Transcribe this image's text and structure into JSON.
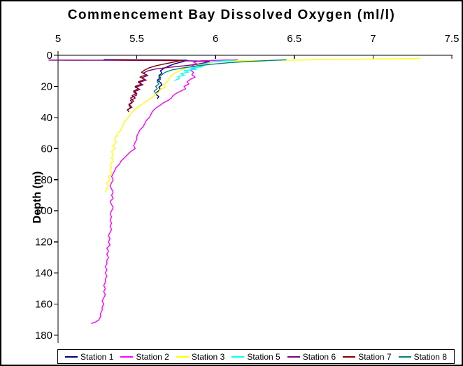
{
  "chart_data": {
    "type": "line",
    "title": "Commencement Bay Dissolved Oxygen (ml/l)",
    "xlabel": "",
    "ylabel": "Depth (m)",
    "grid": false,
    "legend_position": "bottom",
    "x_axis": {
      "position": "top",
      "min": 5,
      "max": 7.5,
      "tick_labels": [
        "5",
        "5.5",
        "6",
        "6.5",
        "7",
        "7.5"
      ],
      "tick_values": [
        5,
        5.5,
        6,
        6.5,
        7,
        7.5
      ]
    },
    "y_axis": {
      "inverted": true,
      "min": 0,
      "max": 180,
      "tick_labels": [
        "0",
        "20",
        "40",
        "60",
        "80",
        "100",
        "120",
        "140",
        "160",
        "180"
      ],
      "tick_values": [
        0,
        20,
        40,
        60,
        80,
        100,
        120,
        140,
        160,
        180
      ]
    },
    "series": [
      {
        "name": "Station 1",
        "color": "#000080",
        "points": [
          [
            5.29,
            2.8
          ],
          [
            5.5,
            2.9
          ],
          [
            5.7,
            3.0
          ],
          [
            5.82,
            3.2
          ],
          [
            5.79,
            4.2
          ],
          [
            5.74,
            5.5
          ],
          [
            5.7,
            7
          ],
          [
            5.67,
            8.5
          ],
          [
            5.65,
            10
          ],
          [
            5.66,
            11.5
          ],
          [
            5.64,
            13
          ],
          [
            5.65,
            14.5
          ],
          [
            5.63,
            16
          ],
          [
            5.65,
            17.5
          ],
          [
            5.66,
            19
          ],
          [
            5.64,
            20.5
          ],
          [
            5.65,
            22
          ],
          [
            5.63,
            23.5
          ],
          [
            5.62,
            25
          ],
          [
            5.64,
            26.5
          ],
          [
            5.63,
            28
          ]
        ]
      },
      {
        "name": "Station 2",
        "color": "#FF00FF",
        "points": [
          [
            6.14,
            2.9
          ],
          [
            6.02,
            3.2
          ],
          [
            5.9,
            3.6
          ],
          [
            5.86,
            4.4
          ],
          [
            5.88,
            5.5
          ],
          [
            5.85,
            6.8
          ],
          [
            5.87,
            8
          ],
          [
            5.84,
            9.5
          ],
          [
            5.86,
            11
          ],
          [
            5.85,
            12.5
          ],
          [
            5.87,
            14
          ],
          [
            5.84,
            15.5
          ],
          [
            5.82,
            17
          ],
          [
            5.83,
            18.5
          ],
          [
            5.8,
            20
          ],
          [
            5.81,
            21.5
          ],
          [
            5.78,
            23
          ],
          [
            5.75,
            24.5
          ],
          [
            5.73,
            26
          ],
          [
            5.72,
            27.5
          ],
          [
            5.7,
            29
          ],
          [
            5.67,
            30.5
          ],
          [
            5.65,
            32
          ],
          [
            5.62,
            34
          ],
          [
            5.6,
            36
          ],
          [
            5.59,
            38
          ],
          [
            5.58,
            40
          ],
          [
            5.56,
            42
          ],
          [
            5.55,
            44
          ],
          [
            5.54,
            46
          ],
          [
            5.52,
            48
          ],
          [
            5.51,
            50
          ],
          [
            5.5,
            52
          ],
          [
            5.5,
            54
          ],
          [
            5.49,
            56
          ],
          [
            5.48,
            58
          ],
          [
            5.49,
            60
          ],
          [
            5.46,
            62
          ],
          [
            5.44,
            64
          ],
          [
            5.42,
            66
          ],
          [
            5.4,
            68
          ],
          [
            5.39,
            70
          ],
          [
            5.37,
            72
          ],
          [
            5.36,
            74
          ],
          [
            5.35,
            76
          ],
          [
            5.34,
            78
          ],
          [
            5.35,
            80
          ],
          [
            5.34,
            82
          ],
          [
            5.33,
            84
          ],
          [
            5.34,
            86
          ],
          [
            5.35,
            88
          ],
          [
            5.34,
            90
          ],
          [
            5.35,
            92
          ],
          [
            5.33,
            94
          ],
          [
            5.34,
            96
          ],
          [
            5.35,
            98
          ],
          [
            5.34,
            100
          ],
          [
            5.33,
            102
          ],
          [
            5.34,
            104
          ],
          [
            5.33,
            106
          ],
          [
            5.34,
            108
          ],
          [
            5.33,
            110
          ],
          [
            5.34,
            112
          ],
          [
            5.33,
            114
          ],
          [
            5.32,
            116
          ],
          [
            5.33,
            118
          ],
          [
            5.32,
            120
          ],
          [
            5.33,
            122
          ],
          [
            5.31,
            124
          ],
          [
            5.32,
            126
          ],
          [
            5.31,
            128
          ],
          [
            5.32,
            130
          ],
          [
            5.31,
            132
          ],
          [
            5.31,
            134
          ],
          [
            5.3,
            136
          ],
          [
            5.31,
            138
          ],
          [
            5.3,
            140
          ],
          [
            5.31,
            142
          ],
          [
            5.3,
            144
          ],
          [
            5.3,
            146
          ],
          [
            5.29,
            148
          ],
          [
            5.3,
            150
          ],
          [
            5.29,
            152
          ],
          [
            5.3,
            154
          ],
          [
            5.29,
            156
          ],
          [
            5.28,
            158
          ],
          [
            5.29,
            160
          ],
          [
            5.28,
            162
          ],
          [
            5.28,
            164
          ],
          [
            5.27,
            166
          ],
          [
            5.27,
            168
          ],
          [
            5.26,
            170
          ],
          [
            5.24,
            171.5
          ],
          [
            5.21,
            172.5
          ]
        ]
      },
      {
        "name": "Station 3",
        "color": "#FFFF00",
        "points": [
          [
            7.3,
            2.0
          ],
          [
            7.15,
            2.2
          ],
          [
            7.0,
            2.4
          ],
          [
            6.85,
            2.6
          ],
          [
            6.7,
            2.8
          ],
          [
            6.55,
            3.0
          ],
          [
            6.4,
            3.2
          ],
          [
            6.25,
            3.4
          ],
          [
            6.1,
            3.7
          ],
          [
            6.0,
            4.1
          ],
          [
            5.95,
            5
          ],
          [
            5.9,
            6
          ],
          [
            5.86,
            7
          ],
          [
            5.82,
            8
          ],
          [
            5.79,
            9
          ],
          [
            5.77,
            10
          ],
          [
            5.74,
            11.5
          ],
          [
            5.72,
            13
          ],
          [
            5.71,
            14.5
          ],
          [
            5.7,
            16
          ],
          [
            5.69,
            17.5
          ],
          [
            5.67,
            19
          ],
          [
            5.68,
            20.5
          ],
          [
            5.65,
            22
          ],
          [
            5.64,
            23.5
          ],
          [
            5.62,
            25
          ],
          [
            5.6,
            27
          ],
          [
            5.57,
            29
          ],
          [
            5.54,
            31
          ],
          [
            5.51,
            33
          ],
          [
            5.48,
            35.5
          ],
          [
            5.46,
            38
          ],
          [
            5.44,
            40.5
          ],
          [
            5.42,
            43
          ],
          [
            5.41,
            45.5
          ],
          [
            5.4,
            48
          ],
          [
            5.38,
            50
          ],
          [
            5.37,
            52
          ],
          [
            5.36,
            54
          ],
          [
            5.37,
            56
          ],
          [
            5.35,
            58
          ],
          [
            5.36,
            60
          ],
          [
            5.34,
            62
          ],
          [
            5.35,
            64
          ],
          [
            5.34,
            66
          ],
          [
            5.35,
            68
          ],
          [
            5.33,
            70
          ],
          [
            5.34,
            72
          ],
          [
            5.33,
            74
          ],
          [
            5.34,
            76
          ],
          [
            5.32,
            78
          ],
          [
            5.33,
            80
          ],
          [
            5.31,
            82
          ],
          [
            5.32,
            84
          ],
          [
            5.31,
            86
          ],
          [
            5.3,
            88
          ]
        ]
      },
      {
        "name": "Station 5",
        "color": "#00FFFF",
        "points": [
          [
            6.13,
            3.2
          ],
          [
            6.05,
            3.6
          ],
          [
            5.98,
            4.2
          ],
          [
            5.92,
            5
          ],
          [
            5.96,
            5.8
          ],
          [
            5.88,
            6.6
          ],
          [
            5.92,
            7.4
          ],
          [
            5.84,
            8.2
          ],
          [
            5.88,
            9
          ],
          [
            5.8,
            9.8
          ],
          [
            5.83,
            10.8
          ],
          [
            5.78,
            11.8
          ],
          [
            5.8,
            12.8
          ],
          [
            5.76,
            13.8
          ],
          [
            5.77,
            15
          ],
          [
            5.74,
            16.2
          ]
        ]
      },
      {
        "name": "Station 6",
        "color": "#800080",
        "points": [
          [
            4.94,
            3.1
          ],
          [
            5.1,
            3.15
          ],
          [
            5.3,
            3.2
          ],
          [
            5.5,
            3.3
          ],
          [
            5.7,
            3.4
          ],
          [
            5.85,
            3.6
          ],
          [
            5.96,
            3.9
          ],
          [
            5.93,
            4.8
          ],
          [
            5.88,
            5.8
          ],
          [
            5.8,
            6.8
          ],
          [
            5.7,
            7.8
          ],
          [
            5.62,
            8.8
          ],
          [
            5.57,
            10
          ],
          [
            5.54,
            11.5
          ],
          [
            5.57,
            13
          ],
          [
            5.53,
            14.5
          ],
          [
            5.56,
            16
          ],
          [
            5.51,
            17.5
          ],
          [
            5.54,
            19
          ],
          [
            5.49,
            20.5
          ],
          [
            5.52,
            22
          ],
          [
            5.48,
            23.5
          ],
          [
            5.5,
            25.5
          ],
          [
            5.46,
            27.5
          ],
          [
            5.48,
            29.5
          ],
          [
            5.45,
            31.5
          ],
          [
            5.47,
            33.5
          ],
          [
            5.44,
            35
          ],
          [
            5.45,
            36.5
          ]
        ]
      },
      {
        "name": "Station 7",
        "color": "#800000",
        "points": [
          [
            5.36,
            2.9
          ],
          [
            5.5,
            3.0
          ],
          [
            5.65,
            3.1
          ],
          [
            5.78,
            3.3
          ],
          [
            5.74,
            4.3
          ],
          [
            5.68,
            5.5
          ],
          [
            5.62,
            6.8
          ],
          [
            5.58,
            8
          ],
          [
            5.55,
            9.5
          ],
          [
            5.53,
            11
          ],
          [
            5.56,
            12.5
          ],
          [
            5.52,
            14
          ],
          [
            5.55,
            15.5
          ],
          [
            5.51,
            17
          ],
          [
            5.53,
            18.5
          ],
          [
            5.49,
            20
          ],
          [
            5.51,
            21.5
          ],
          [
            5.48,
            23
          ],
          [
            5.5,
            24.5
          ],
          [
            5.47,
            26
          ],
          [
            5.49,
            27.5
          ],
          [
            5.46,
            29
          ],
          [
            5.47,
            30.5
          ],
          [
            5.45,
            32
          ],
          [
            5.46,
            33.5
          ],
          [
            5.44,
            35.5
          ]
        ]
      },
      {
        "name": "Station 8",
        "color": "#008080",
        "points": [
          [
            6.45,
            2.9
          ],
          [
            6.33,
            3.4
          ],
          [
            6.2,
            4.0
          ],
          [
            6.08,
            4.8
          ],
          [
            5.97,
            5.8
          ],
          [
            5.87,
            7
          ],
          [
            5.79,
            8.2
          ],
          [
            5.72,
            9.5
          ],
          [
            5.68,
            11
          ],
          [
            5.66,
            12.5
          ],
          [
            5.64,
            14
          ],
          [
            5.65,
            15.5
          ],
          [
            5.63,
            17
          ],
          [
            5.64,
            18.5
          ],
          [
            5.62,
            20
          ],
          [
            5.63,
            21.5
          ],
          [
            5.61,
            23
          ],
          [
            5.62,
            24.5
          ]
        ]
      }
    ]
  }
}
